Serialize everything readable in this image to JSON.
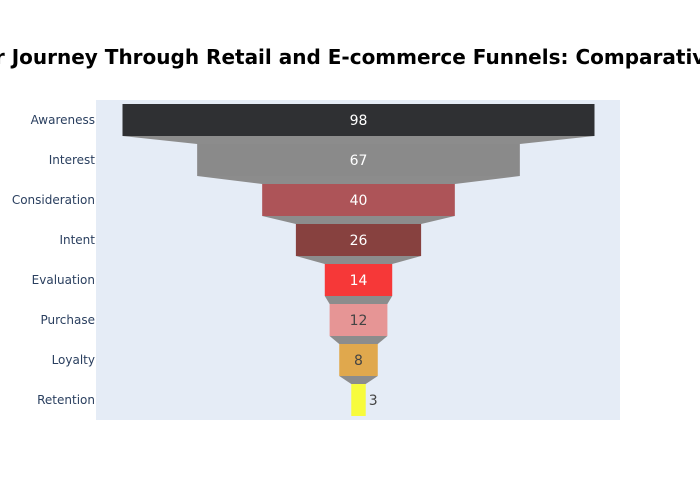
{
  "chart_data": {
    "type": "funnel",
    "title": "Customer Journey Through Retail and E-commerce Funnels: Comparative Analysis",
    "categories": [
      "Awareness",
      "Interest",
      "Consideration",
      "Intent",
      "Evaluation",
      "Purchase",
      "Loyalty",
      "Retention"
    ],
    "values": [
      98,
      67,
      40,
      26,
      14,
      12,
      8,
      3
    ],
    "colors": [
      "#2f3033",
      "#8a8a8a",
      "#ad5458",
      "#87413f",
      "#f63838",
      "#e69595",
      "#e0a84d",
      "#f7fb3c"
    ],
    "text_colors": [
      "#ffffff",
      "#ffffff",
      "#ffffff",
      "#ffffff",
      "#ffffff",
      "#444444",
      "#444444",
      "#444444"
    ],
    "connector_color": "#8c8c8c",
    "plot_background": "#e5ecf6"
  }
}
